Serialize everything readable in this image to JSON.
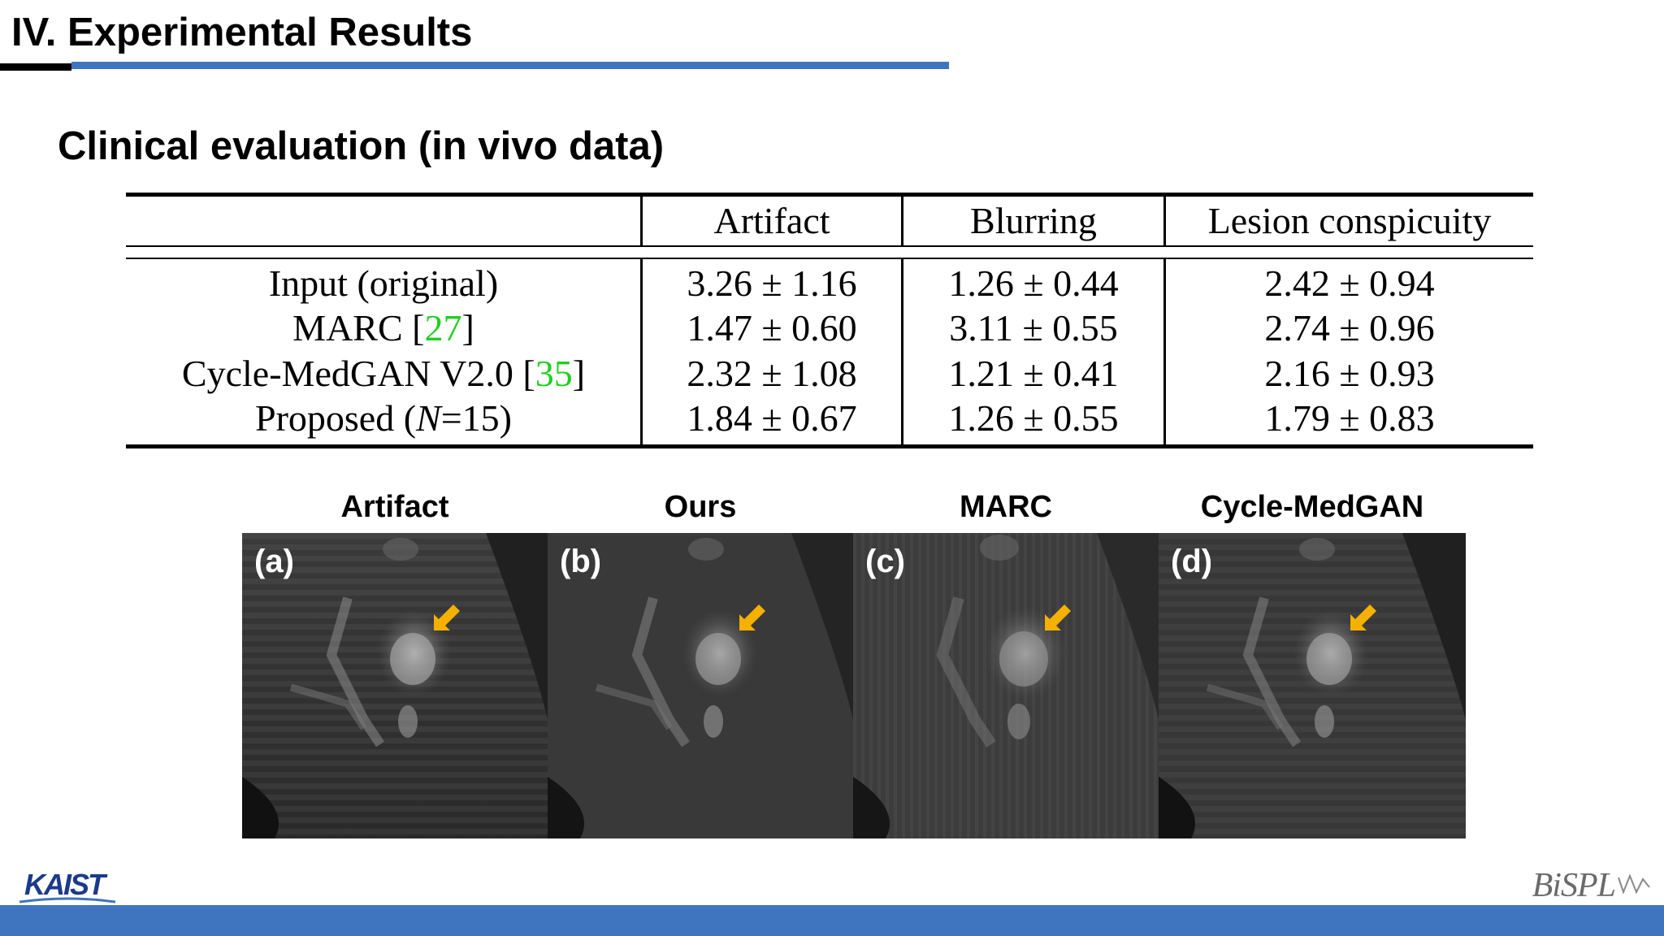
{
  "header": {
    "title": "IV. Experimental Results"
  },
  "subtitle": "Clinical evaluation (in vivo data)",
  "table": {
    "columns": [
      "Artifact",
      "Blurring",
      "Lesion conspicuity"
    ],
    "rows": [
      {
        "label": "Input (original)",
        "ref": "",
        "suffix": "",
        "values": [
          "3.26 ± 1.16",
          "1.26 ± 0.44",
          "2.42 ± 0.94"
        ]
      },
      {
        "label": "MARC [",
        "ref": "27",
        "suffix": "]",
        "values": [
          "1.47 ± 0.60",
          "3.11 ± 0.55",
          "2.74 ± 0.96"
        ]
      },
      {
        "label": "Cycle-MedGAN V2.0 [",
        "ref": "35",
        "suffix": "]",
        "values": [
          "2.32 ± 1.08",
          "1.21 ± 0.41",
          "2.16 ± 0.93"
        ]
      },
      {
        "label": "Proposed (",
        "ref": "",
        "italic": "N",
        "suffix": "=15)",
        "values": [
          "1.84 ± 0.67",
          "1.26 ± 0.55",
          "1.79 ± 0.83"
        ]
      }
    ]
  },
  "figure": {
    "arrow_color": "#f5b000",
    "panels": [
      {
        "column_label": "Artifact",
        "tag": "(a)"
      },
      {
        "column_label": "Ours",
        "tag": "(b)"
      },
      {
        "column_label": "MARC",
        "tag": "(c)"
      },
      {
        "column_label": "Cycle-MedGAN",
        "tag": "(d)"
      }
    ]
  },
  "footer": {
    "left_logo": "KAIST",
    "right_logo": "BiSPL"
  }
}
